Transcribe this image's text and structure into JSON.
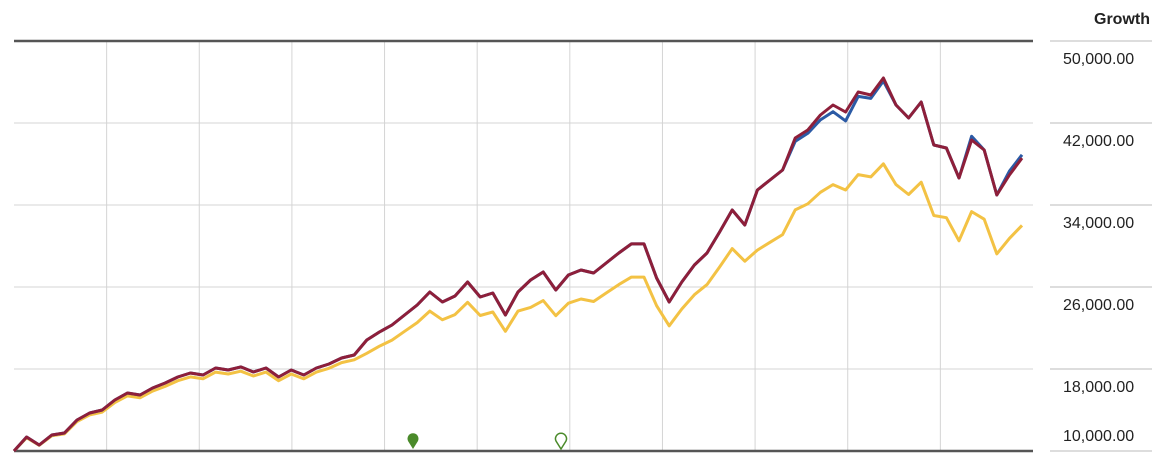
{
  "chart_data": {
    "type": "line",
    "y_axis_title": "Growth",
    "ylim": [
      10000,
      50000
    ],
    "yticks": [
      {
        "value": 10000,
        "label": "10,000.00"
      },
      {
        "value": 18000,
        "label": "18,000.00"
      },
      {
        "value": 26000,
        "label": "26,000.00"
      },
      {
        "value": 34000,
        "label": "34,000.00"
      },
      {
        "value": 42000,
        "label": "42,000.00"
      },
      {
        "value": 50000,
        "label": "50,000.00"
      }
    ],
    "grid": true,
    "series": [
      {
        "color": "#2b5aa5",
        "values": [
          10000,
          11370,
          10590,
          11560,
          11760,
          13020,
          13710,
          14000,
          14980,
          15660,
          15460,
          16150,
          16630,
          17220,
          17610,
          17410,
          18100,
          17900,
          18200,
          17710,
          18100,
          17220,
          17900,
          17410,
          18100,
          18490,
          19070,
          19370,
          20830,
          21610,
          22290,
          23270,
          24240,
          25510,
          24540,
          25120,
          26490,
          25020,
          25410,
          23270,
          25510,
          26680,
          27460,
          25710,
          27170,
          27660,
          27370,
          28340,
          29320,
          30200,
          30200,
          26880,
          24540,
          26490,
          28150,
          29320,
          31370,
          33510,
          32050,
          35460,
          36440,
          37410,
          40200,
          41000,
          42300,
          43100,
          42200,
          44600,
          44400,
          46100,
          43760,
          42490,
          44050,
          39850,
          39560,
          36630,
          40700,
          39370,
          34980,
          37300,
          38900
        ]
      },
      {
        "color": "#8e1f3a",
        "values": [
          10000,
          11370,
          10590,
          11560,
          11760,
          13020,
          13710,
          14000,
          14980,
          15660,
          15460,
          16150,
          16630,
          17220,
          17610,
          17410,
          18100,
          17900,
          18200,
          17710,
          18100,
          17220,
          17900,
          17410,
          18100,
          18490,
          19070,
          19370,
          20830,
          21610,
          22290,
          23270,
          24240,
          25510,
          24540,
          25120,
          26490,
          25020,
          25410,
          23270,
          25510,
          26680,
          27460,
          25710,
          27170,
          27660,
          27370,
          28340,
          29320,
          30200,
          30200,
          26880,
          24540,
          26490,
          28150,
          29320,
          31370,
          33510,
          32050,
          35460,
          36440,
          37410,
          40540,
          41320,
          42780,
          43760,
          43070,
          45020,
          44730,
          46390,
          43760,
          42490,
          44050,
          39850,
          39560,
          36630,
          40340,
          39370,
          34980,
          36930,
          38580
        ]
      },
      {
        "color": "#f3c244",
        "values": [
          10000,
          11300,
          10560,
          11480,
          11670,
          12870,
          13520,
          13800,
          14730,
          15380,
          15190,
          15840,
          16300,
          16860,
          17230,
          17040,
          17700,
          17510,
          17790,
          17320,
          17700,
          16860,
          17510,
          17040,
          17700,
          18070,
          18620,
          18900,
          19530,
          20220,
          20820,
          21680,
          22530,
          23650,
          22800,
          23310,
          24510,
          23220,
          23560,
          21680,
          23650,
          24010,
          24670,
          23200,
          24420,
          24830,
          24590,
          25410,
          26230,
          26970,
          26970,
          24180,
          22210,
          23850,
          25250,
          26230,
          27950,
          29750,
          28520,
          29600,
          30360,
          31110,
          33520,
          34120,
          35240,
          35990,
          35460,
          36970,
          36740,
          38020,
          35990,
          35020,
          36220,
          32980,
          32760,
          30510,
          33360,
          32610,
          29230,
          30740,
          32010
        ]
      }
    ]
  }
}
